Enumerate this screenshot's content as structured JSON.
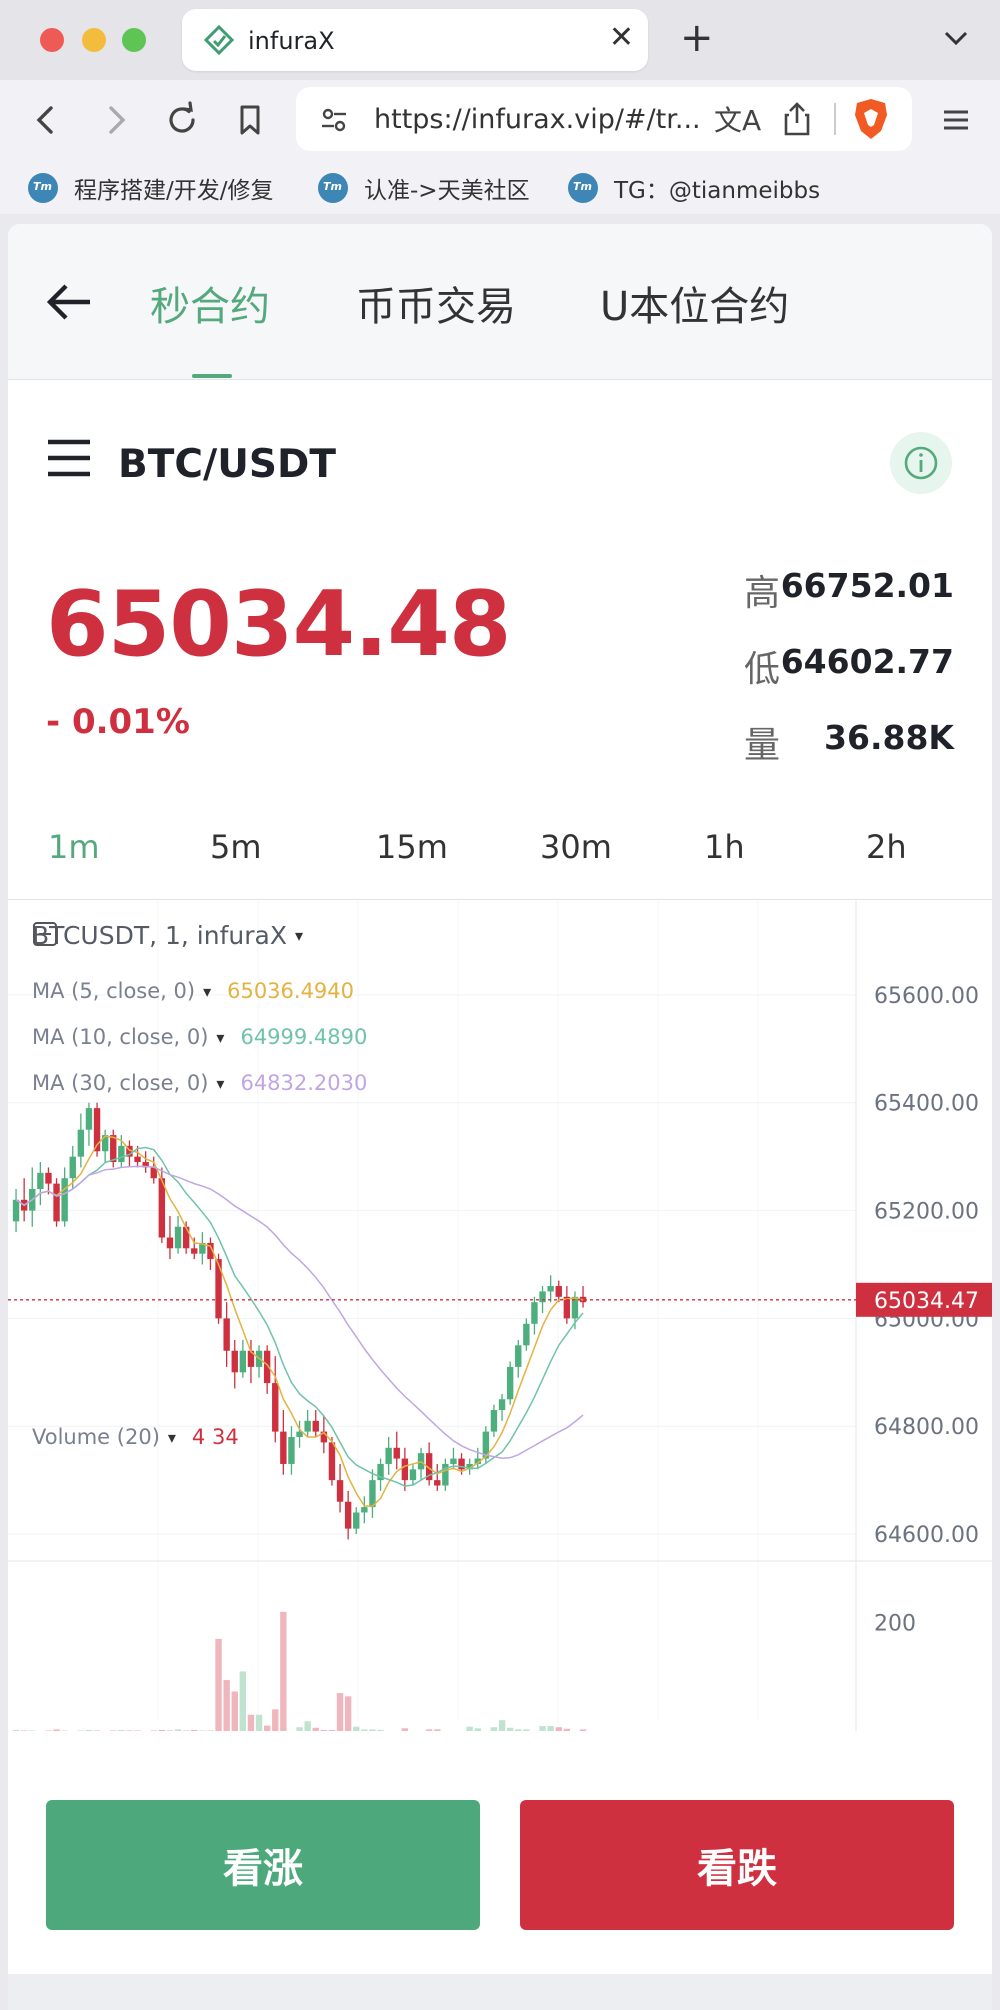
{
  "browser": {
    "tab_title": "infuraX",
    "url": "https://infurax.vip/#/tr...",
    "bookmarks": [
      {
        "label": "程序搭建/开发/修复"
      },
      {
        "label": "认准->天美社区"
      },
      {
        "label": "TG：@tianmeibbs"
      }
    ]
  },
  "nav": {
    "tabs": [
      {
        "label": "秒合约",
        "active": true
      },
      {
        "label": "币币交易"
      },
      {
        "label": "U本位合约"
      }
    ]
  },
  "pair": {
    "title": "BTC/USDT"
  },
  "ticker": {
    "price": "65034.48",
    "change": "- 0.01%",
    "high_label": "高",
    "high_value": "66752.01",
    "low_label": "低",
    "low_value": "64602.77",
    "vol_label": "量",
    "vol_value": "36.88K"
  },
  "intervals": [
    "1m",
    "5m",
    "15m",
    "30m",
    "1h",
    "2h"
  ],
  "active_interval": "1m",
  "chart": {
    "symbol_label": "BTCUSDT, 1, infuraX",
    "ma": [
      {
        "label": "MA (5, close, 0)",
        "value": "65036.4940",
        "color": "#e3b341"
      },
      {
        "label": "MA (10, close, 0)",
        "value": "64999.4890",
        "color": "#6fc3a6"
      },
      {
        "label": "MA (30, close, 0)",
        "value": "64832.2030",
        "color": "#c0a6e4"
      }
    ],
    "volume_label": "Volume (20)",
    "volume_value": "4 34",
    "y_ticks": [
      "65600.00",
      "65400.00",
      "65200.00",
      "65000.00",
      "64800.00",
      "64600.00"
    ],
    "last_price_tag": "65034.47",
    "volume_tick": "200",
    "up_color": "#4caf7d",
    "down_color": "#cf3040"
  },
  "chart_data": {
    "type": "candlestick",
    "y_range": [
      64550,
      65700
    ],
    "candles": [
      [
        65180,
        65240,
        65160,
        65220
      ],
      [
        65220,
        65260,
        65180,
        65200
      ],
      [
        65200,
        65280,
        65170,
        65240
      ],
      [
        65240,
        65290,
        65210,
        65270
      ],
      [
        65270,
        65280,
        65230,
        65250
      ],
      [
        65250,
        65260,
        65170,
        65180
      ],
      [
        65180,
        65280,
        65170,
        65260
      ],
      [
        65260,
        65320,
        65240,
        65300
      ],
      [
        65300,
        65380,
        65280,
        65350
      ],
      [
        65350,
        65400,
        65320,
        65390
      ],
      [
        65390,
        65400,
        65300,
        65310
      ],
      [
        65310,
        65350,
        65290,
        65340
      ],
      [
        65340,
        65350,
        65280,
        65290
      ],
      [
        65290,
        65340,
        65280,
        65320
      ],
      [
        65320,
        65330,
        65280,
        65300
      ],
      [
        65300,
        65320,
        65280,
        65290
      ],
      [
        65290,
        65310,
        65270,
        65280
      ],
      [
        65280,
        65300,
        65250,
        65260
      ],
      [
        65260,
        65280,
        65140,
        65150
      ],
      [
        65150,
        65190,
        65110,
        65130
      ],
      [
        65130,
        65190,
        65120,
        65170
      ],
      [
        65170,
        65180,
        65120,
        65130
      ],
      [
        65130,
        65150,
        65110,
        65120
      ],
      [
        65120,
        65160,
        65100,
        65140
      ],
      [
        65140,
        65150,
        65090,
        65110
      ],
      [
        65110,
        65120,
        64990,
        65000
      ],
      [
        65000,
        65030,
        64910,
        64940
      ],
      [
        64940,
        64960,
        64870,
        64900
      ],
      [
        64900,
        64960,
        64890,
        64940
      ],
      [
        64940,
        64960,
        64880,
        64910
      ],
      [
        64910,
        64950,
        64890,
        64940
      ],
      [
        64940,
        64950,
        64860,
        64880
      ],
      [
        64880,
        64930,
        64770,
        64790
      ],
      [
        64790,
        64830,
        64710,
        64730
      ],
      [
        64730,
        64800,
        64710,
        64780
      ],
      [
        64780,
        64810,
        64760,
        64790
      ],
      [
        64790,
        64830,
        64780,
        64810
      ],
      [
        64810,
        64830,
        64780,
        64790
      ],
      [
        64790,
        64820,
        64750,
        64770
      ],
      [
        64770,
        64780,
        64690,
        64700
      ],
      [
        64700,
        64730,
        64640,
        64660
      ],
      [
        64660,
        64680,
        64590,
        64610
      ],
      [
        64610,
        64650,
        64600,
        64640
      ],
      [
        64640,
        64670,
        64620,
        64650
      ],
      [
        64650,
        64720,
        64630,
        64700
      ],
      [
        64700,
        64740,
        64680,
        64730
      ],
      [
        64730,
        64780,
        64710,
        64760
      ],
      [
        64760,
        64790,
        64720,
        64740
      ],
      [
        64740,
        64760,
        64680,
        64700
      ],
      [
        64700,
        64730,
        64690,
        64720
      ],
      [
        64720,
        64760,
        64700,
        64750
      ],
      [
        64750,
        64770,
        64690,
        64700
      ],
      [
        64700,
        64730,
        64680,
        64690
      ],
      [
        64690,
        64740,
        64680,
        64730
      ],
      [
        64730,
        64760,
        64720,
        64740
      ],
      [
        64740,
        64750,
        64710,
        64720
      ],
      [
        64720,
        64740,
        64710,
        64730
      ],
      [
        64730,
        64760,
        64720,
        64740
      ],
      [
        64740,
        64800,
        64730,
        64790
      ],
      [
        64790,
        64840,
        64780,
        64830
      ],
      [
        64830,
        64860,
        64810,
        64850
      ],
      [
        64850,
        64920,
        64840,
        64910
      ],
      [
        64910,
        64960,
        64890,
        64950
      ],
      [
        64950,
        65000,
        64940,
        64990
      ],
      [
        64990,
        65040,
        64970,
        65030
      ],
      [
        65030,
        65060,
        65010,
        65050
      ],
      [
        65050,
        65080,
        65030,
        65060
      ],
      [
        65060,
        65070,
        65030,
        65040
      ],
      [
        65040,
        65060,
        64990,
        65000
      ],
      [
        65000,
        65050,
        64980,
        65040
      ],
      [
        65040,
        65060,
        65020,
        65030
      ]
    ],
    "volume": [
      2,
      1,
      1,
      0,
      1,
      3,
      1,
      0,
      1,
      2,
      1,
      0,
      1,
      2,
      1,
      1,
      0,
      1,
      2,
      1,
      3,
      1,
      2,
      1,
      1,
      170,
      94,
      73,
      110,
      30,
      30,
      10,
      40,
      220,
      0,
      7,
      18,
      6,
      2,
      2,
      70,
      64,
      8,
      3,
      3,
      2,
      0,
      0,
      5,
      0,
      0,
      3,
      3,
      0,
      0,
      0,
      8,
      5,
      0,
      7,
      20,
      6,
      3,
      3,
      0,
      9,
      9,
      7,
      4,
      0,
      3
    ]
  }
}
